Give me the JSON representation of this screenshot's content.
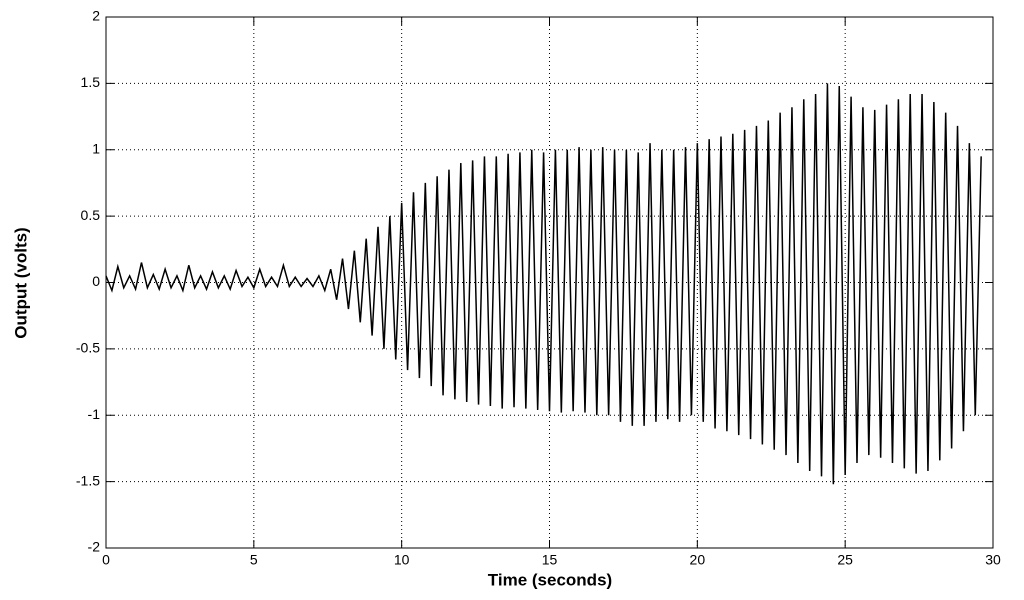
{
  "chart_data": {
    "type": "line",
    "xlabel": "Time (seconds)",
    "ylabel": "Output (volts)",
    "xlim": [
      0,
      30
    ],
    "ylim": [
      -2,
      2
    ],
    "xticks": [
      0,
      5,
      10,
      15,
      20,
      25,
      30
    ],
    "yticks": [
      -2,
      -1.5,
      -1,
      -0.5,
      0,
      0.5,
      1,
      1.5,
      2
    ],
    "grid": true,
    "color": "#000000",
    "x": [
      0,
      0.2,
      0.4,
      0.6,
      0.8,
      1.0,
      1.2,
      1.4,
      1.6,
      1.8,
      2.0,
      2.2,
      2.4,
      2.6,
      2.8,
      3.0,
      3.2,
      3.4,
      3.6,
      3.8,
      4.0,
      4.2,
      4.4,
      4.6,
      4.8,
      5.0,
      5.2,
      5.4,
      5.6,
      5.8,
      6.0,
      6.2,
      6.4,
      6.6,
      6.8,
      7.0,
      7.2,
      7.4,
      7.6,
      7.8,
      8.0,
      8.2,
      8.4,
      8.6,
      8.8,
      9.0,
      9.2,
      9.4,
      9.6,
      9.8,
      10.0,
      10.2,
      10.4,
      10.6,
      10.8,
      11.0,
      11.2,
      11.4,
      11.6,
      11.8,
      12.0,
      12.2,
      12.4,
      12.6,
      12.8,
      13.0,
      13.2,
      13.4,
      13.6,
      13.8,
      14.0,
      14.2,
      14.4,
      14.6,
      14.8,
      15.0,
      15.2,
      15.4,
      15.6,
      15.8,
      16.0,
      16.2,
      16.4,
      16.6,
      16.8,
      17.0,
      17.2,
      17.4,
      17.6,
      17.8,
      18.0,
      18.2,
      18.4,
      18.6,
      18.8,
      19.0,
      19.2,
      19.4,
      19.6,
      19.8,
      20.0,
      20.2,
      20.4,
      20.6,
      20.8,
      21.0,
      21.2,
      21.4,
      21.6,
      21.8,
      22.0,
      22.2,
      22.4,
      22.6,
      22.8,
      23.0,
      23.2,
      23.4,
      23.6,
      23.8,
      24.0,
      24.2,
      24.4,
      24.6,
      24.8,
      25.0,
      25.2,
      25.4,
      25.6,
      25.8,
      26.0,
      26.2,
      26.4,
      26.6,
      26.8,
      27.0,
      27.2,
      27.4,
      27.6,
      27.8,
      28.0,
      28.2,
      28.4,
      28.6,
      28.8,
      29.0,
      29.2,
      29.4,
      29.6
    ],
    "values": [
      0.05,
      -0.06,
      0.12,
      -0.04,
      0.05,
      -0.05,
      0.15,
      -0.04,
      0.06,
      -0.05,
      0.1,
      -0.04,
      0.05,
      -0.06,
      0.13,
      -0.04,
      0.05,
      -0.05,
      0.08,
      -0.04,
      0.05,
      -0.05,
      0.09,
      -0.03,
      0.04,
      -0.04,
      0.1,
      -0.03,
      0.04,
      -0.03,
      0.13,
      -0.03,
      0.04,
      -0.03,
      0.03,
      -0.03,
      0.05,
      -0.06,
      0.1,
      -0.13,
      0.18,
      -0.2,
      0.24,
      -0.3,
      0.33,
      -0.4,
      0.42,
      -0.5,
      0.5,
      -0.58,
      0.6,
      -0.66,
      0.68,
      -0.72,
      0.75,
      -0.78,
      0.8,
      -0.85,
      0.85,
      -0.88,
      0.9,
      -0.9,
      0.92,
      -0.92,
      0.95,
      -0.93,
      0.95,
      -0.95,
      0.97,
      -0.94,
      0.98,
      -0.95,
      1.0,
      -0.96,
      0.98,
      -0.97,
      1.0,
      -0.98,
      1.0,
      -0.97,
      1.02,
      -0.98,
      1.0,
      -1.0,
      1.02,
      -1.0,
      1.0,
      -1.05,
      1.0,
      -1.08,
      0.98,
      -1.08,
      1.05,
      -1.05,
      1.0,
      -1.03,
      1.0,
      -1.05,
      1.02,
      -1.0,
      1.05,
      -1.05,
      1.08,
      -1.1,
      1.1,
      -1.12,
      1.12,
      -1.15,
      1.15,
      -1.18,
      1.18,
      -1.22,
      1.22,
      -1.26,
      1.28,
      -1.3,
      1.32,
      -1.36,
      1.38,
      -1.42,
      1.42,
      -1.46,
      1.5,
      -1.52,
      1.48,
      -1.45,
      1.4,
      -1.36,
      1.32,
      -1.3,
      1.3,
      -1.32,
      1.34,
      -1.36,
      1.38,
      -1.4,
      1.42,
      -1.44,
      1.42,
      -1.42,
      1.36,
      -1.34,
      1.28,
      -1.25,
      1.18,
      -1.12,
      1.05,
      -1.0,
      0.95
    ]
  }
}
